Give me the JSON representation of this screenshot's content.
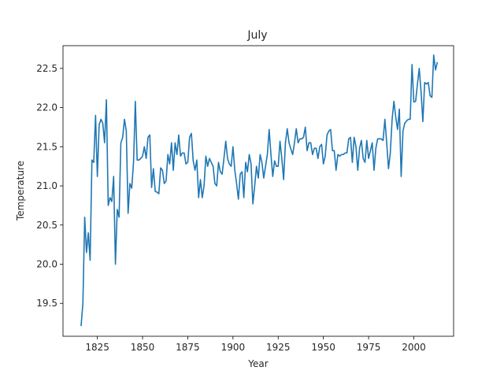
{
  "chart_data": {
    "type": "line",
    "title": "July",
    "xlabel": "Year",
    "ylabel": "Temperature",
    "xlim": [
      1806,
      2022
    ],
    "ylim": [
      19.08,
      22.79
    ],
    "xticks": [
      1825,
      1850,
      1875,
      1900,
      1925,
      1950,
      1975,
      2000
    ],
    "xtick_labels": [
      "1825",
      "1850",
      "1875",
      "1900",
      "1925",
      "1950",
      "1975",
      "2000"
    ],
    "yticks": [
      19.5,
      20.0,
      20.5,
      21.0,
      21.5,
      22.0,
      22.5
    ],
    "ytick_labels": [
      "19.5",
      "20.0",
      "20.5",
      "21.0",
      "21.5",
      "22.0",
      "22.5"
    ],
    "grid": false,
    "colors": {
      "line": "#1f77b4",
      "axes": "#000000",
      "text": "#262626"
    },
    "series": [
      {
        "x": [
          1816,
          1817,
          1818,
          1819,
          1820,
          1821,
          1822,
          1823,
          1824,
          1825,
          1826,
          1827,
          1828,
          1829,
          1830,
          1831,
          1832,
          1833,
          1834,
          1835,
          1836,
          1837,
          1838,
          1839,
          1840,
          1841,
          1842,
          1843,
          1844,
          1845,
          1846,
          1847,
          1848,
          1849,
          1850,
          1851,
          1852,
          1853,
          1854,
          1855,
          1856,
          1857,
          1858,
          1859,
          1860,
          1861,
          1862,
          1863,
          1864,
          1865,
          1866,
          1867,
          1868,
          1869,
          1870,
          1871,
          1872,
          1873,
          1874,
          1875,
          1876,
          1877,
          1878,
          1879,
          1880,
          1881,
          1882,
          1883,
          1884,
          1885,
          1886,
          1887,
          1888,
          1889,
          1890,
          1891,
          1892,
          1893,
          1894,
          1895,
          1896,
          1897,
          1898,
          1899,
          1900,
          1901,
          1902,
          1903,
          1904,
          1905,
          1906,
          1907,
          1908,
          1909,
          1910,
          1911,
          1912,
          1913,
          1914,
          1915,
          1916,
          1917,
          1918,
          1919,
          1920,
          1921,
          1922,
          1923,
          1924,
          1925,
          1926,
          1927,
          1928,
          1929,
          1930,
          1931,
          1932,
          1933,
          1934,
          1935,
          1936,
          1937,
          1938,
          1939,
          1940,
          1941,
          1942,
          1943,
          1944,
          1945,
          1946,
          1947,
          1948,
          1949,
          1950,
          1951,
          1952,
          1953,
          1954,
          1955,
          1956,
          1957,
          1958,
          1959,
          1960,
          1961,
          1962,
          1963,
          1964,
          1965,
          1966,
          1967,
          1968,
          1969,
          1970,
          1971,
          1972,
          1973,
          1974,
          1975,
          1976,
          1977,
          1978,
          1979,
          1980,
          1981,
          1982,
          1983,
          1984,
          1985,
          1986,
          1987,
          1988,
          1989,
          1990,
          1991,
          1992,
          1993,
          1994,
          1995,
          1996,
          1997,
          1998,
          1999,
          2000,
          2001,
          2002,
          2003,
          2004,
          2005,
          2006,
          2007,
          2008,
          2009,
          2010,
          2011,
          2012,
          2013
        ],
        "values": [
          19.21,
          19.5,
          20.6,
          20.15,
          20.4,
          20.05,
          21.33,
          21.3,
          21.9,
          21.12,
          21.78,
          21.85,
          21.8,
          21.55,
          22.1,
          20.75,
          20.85,
          20.8,
          21.12,
          20.0,
          20.7,
          20.6,
          21.55,
          21.62,
          21.85,
          21.7,
          20.65,
          21.03,
          20.97,
          21.3,
          22.08,
          21.33,
          21.33,
          21.35,
          21.38,
          21.5,
          21.35,
          21.62,
          21.65,
          20.98,
          21.22,
          20.93,
          20.92,
          20.9,
          21.23,
          21.2,
          21.03,
          21.06,
          21.4,
          21.28,
          21.55,
          21.2,
          21.55,
          21.4,
          21.65,
          21.38,
          21.42,
          21.42,
          21.28,
          21.3,
          21.62,
          21.67,
          21.32,
          21.2,
          21.33,
          20.85,
          21.08,
          20.85,
          21.0,
          21.38,
          21.25,
          21.35,
          21.3,
          21.25,
          21.03,
          21.0,
          21.3,
          21.18,
          21.15,
          21.35,
          21.57,
          21.35,
          21.28,
          21.25,
          21.5,
          21.2,
          21.03,
          20.83,
          21.15,
          21.18,
          20.85,
          21.3,
          21.18,
          21.4,
          21.28,
          20.77,
          21.0,
          21.25,
          21.1,
          21.4,
          21.3,
          21.1,
          21.25,
          21.4,
          21.72,
          21.4,
          21.12,
          21.32,
          21.25,
          21.25,
          21.57,
          21.35,
          21.08,
          21.55,
          21.73,
          21.55,
          21.47,
          21.4,
          21.55,
          21.73,
          21.55,
          21.6,
          21.6,
          21.62,
          21.75,
          21.45,
          21.55,
          21.55,
          21.4,
          21.48,
          21.48,
          21.35,
          21.5,
          21.53,
          21.28,
          21.38,
          21.65,
          21.7,
          21.72,
          21.45,
          21.45,
          21.2,
          21.4,
          21.38,
          21.4,
          21.4,
          21.42,
          21.42,
          21.6,
          21.62,
          21.3,
          21.62,
          21.5,
          21.2,
          21.48,
          21.58,
          21.35,
          21.3,
          21.58,
          21.35,
          21.45,
          21.55,
          21.2,
          21.48,
          21.6,
          21.6,
          21.6,
          21.58,
          21.85,
          21.55,
          21.22,
          21.42,
          21.85,
          22.08,
          21.88,
          21.72,
          21.98,
          21.12,
          21.7,
          21.8,
          21.83,
          21.85,
          21.85,
          22.55,
          22.07,
          22.08,
          22.3,
          22.5,
          22.2,
          21.82,
          22.32,
          22.3,
          22.32,
          22.15,
          22.13,
          22.67,
          22.48,
          22.58
        ]
      }
    ]
  }
}
